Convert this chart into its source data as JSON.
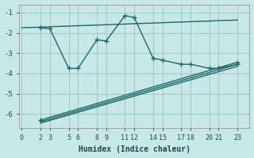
{
  "xlabel": "Humidex (Indice chaleur)",
  "bg_color": "#c8e8e8",
  "grid_color": "#a0c8c8",
  "line_color": "#1a6868",
  "xticks": [
    0,
    2,
    3,
    5,
    6,
    8,
    9,
    11,
    12,
    14,
    15,
    17,
    18,
    20,
    21,
    23
  ],
  "yticks": [
    -1,
    -2,
    -3,
    -4,
    -5,
    -6
  ],
  "ylim": [
    -6.7,
    -0.6
  ],
  "xlim": [
    -0.3,
    24.3
  ],
  "series": [
    {
      "x": [
        0,
        2,
        3,
        5,
        6,
        8,
        9,
        11,
        12,
        14,
        15,
        17,
        18,
        20,
        21,
        23
      ],
      "y": [
        -1.75,
        -1.72,
        -1.7,
        -1.67,
        -1.65,
        -1.62,
        -1.6,
        -1.57,
        -1.55,
        -1.52,
        -1.5,
        -1.47,
        -1.45,
        -1.42,
        -1.4,
        -1.37
      ],
      "marker": null,
      "lw": 1.0
    },
    {
      "x": [
        2,
        3,
        5,
        6,
        8,
        9,
        11,
        12,
        14,
        15,
        17,
        18,
        20,
        21,
        23
      ],
      "y": [
        -1.75,
        -1.8,
        -3.75,
        -3.75,
        -2.35,
        -2.4,
        -1.15,
        -1.25,
        -3.25,
        -3.35,
        -3.55,
        -3.55,
        -3.75,
        -3.75,
        -3.55
      ],
      "marker": "+",
      "lw": 1.0
    },
    {
      "x": [
        2,
        23
      ],
      "y": [
        -6.3,
        -3.45
      ],
      "marker": "+",
      "lw": 1.0
    },
    {
      "x": [
        2,
        23
      ],
      "y": [
        -6.38,
        -3.55
      ],
      "marker": null,
      "lw": 1.0
    },
    {
      "x": [
        2,
        23
      ],
      "y": [
        -6.45,
        -3.65
      ],
      "marker": null,
      "lw": 1.0
    }
  ]
}
